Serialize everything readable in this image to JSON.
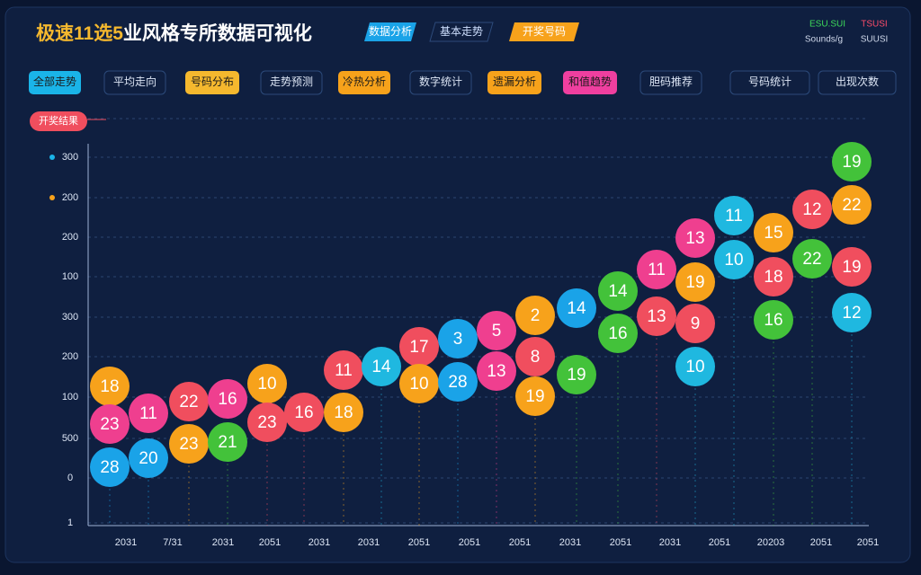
{
  "header": {
    "title_highlight": "极速11选5",
    "title_rest": "业风格专所数据可视化",
    "tabs": [
      "数据分析",
      "基本走势",
      "开奖号码"
    ],
    "status": [
      "ESU.SUI",
      "TSUSI",
      "Sounds/g",
      "SUUSI"
    ]
  },
  "filters": [
    "全部走势",
    "平均走向",
    "号码分布",
    "走势预测",
    "冷热分析",
    "数字统计",
    "遗漏分析",
    "和值趋势",
    "胆码推荐",
    "号码统计",
    "出现次数"
  ],
  "badge": "开奖结果",
  "y_labels": [
    "300",
    "200",
    "200",
    "100",
    "300",
    "200",
    "100",
    "500",
    "0",
    "1"
  ],
  "x_labels": [
    "2031",
    "7/31",
    "2031",
    "2051",
    "2031",
    "2031",
    "2051",
    "2051",
    "2051",
    "2031",
    "2051",
    "2031",
    "2051",
    "20203",
    "2051",
    "2051"
  ],
  "bubbles": [
    [
      18,
      23,
      28
    ],
    [
      11,
      20
    ],
    [
      22,
      23
    ],
    [
      16,
      21
    ],
    [
      10,
      23
    ],
    [
      16
    ],
    [
      11,
      18
    ],
    [
      14
    ],
    [
      17,
      10
    ],
    [
      3,
      28
    ],
    [
      5,
      13
    ],
    [
      2,
      8,
      19
    ],
    [
      14,
      19
    ],
    [
      14,
      16
    ],
    [
      11,
      13
    ],
    [
      13,
      19,
      9,
      10
    ],
    [
      11,
      10
    ],
    [
      15,
      18,
      16
    ],
    [
      12,
      22
    ],
    [
      19,
      22,
      19,
      12
    ]
  ]
}
